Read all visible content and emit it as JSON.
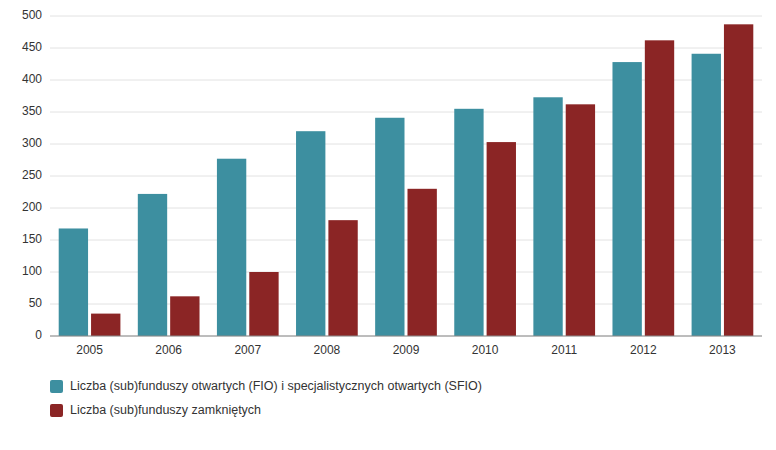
{
  "chart_data": {
    "type": "bar",
    "categories": [
      "2005",
      "2006",
      "2007",
      "2008",
      "2009",
      "2010",
      "2011",
      "2012",
      "2013"
    ],
    "series": [
      {
        "name": "Liczba (sub)funduszy otwartych (FIO) i specjalistycznych otwartych (SFIO)",
        "color": "#3d8fa0",
        "values": [
          168,
          222,
          277,
          320,
          341,
          355,
          373,
          428,
          441
        ]
      },
      {
        "name": "Liczba (sub)funduszy zamkniętych",
        "color": "#8b2525",
        "values": [
          35,
          62,
          100,
          181,
          230,
          303,
          362,
          462,
          487
        ]
      }
    ],
    "ylim": [
      0,
      500
    ],
    "yticks": [
      0,
      50,
      100,
      150,
      200,
      250,
      300,
      350,
      400,
      450,
      500
    ],
    "grid": true,
    "legend": "bottom"
  }
}
